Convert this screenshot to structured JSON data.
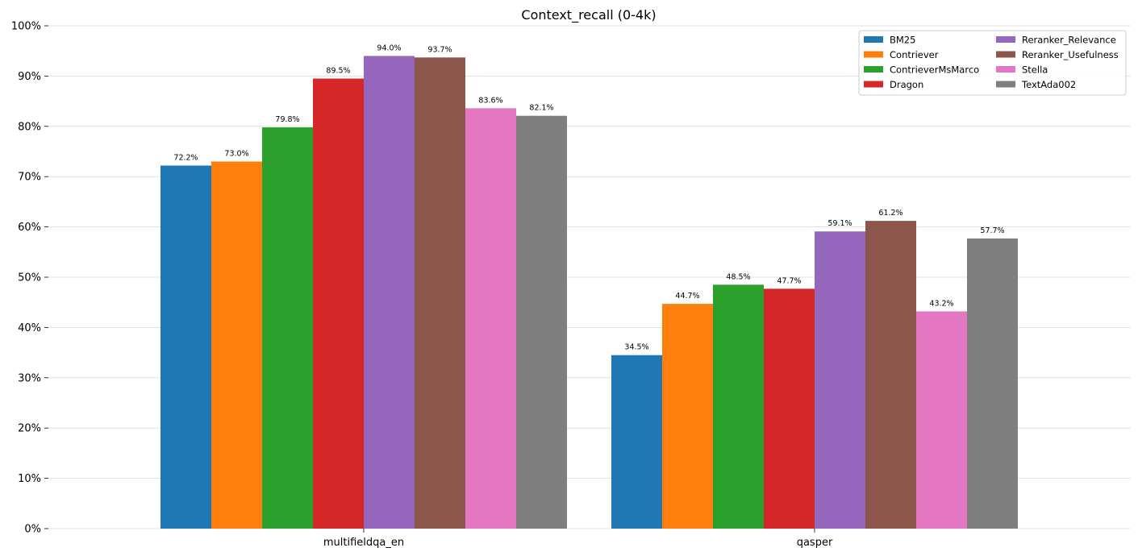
{
  "chart_data": {
    "type": "bar",
    "title": "Context_recall (0-4k)",
    "xlabel": "",
    "ylabel": "",
    "ylim": [
      0,
      100
    ],
    "ytick_labels": [
      "0%",
      "10%",
      "20%",
      "30%",
      "40%",
      "50%",
      "60%",
      "70%",
      "80%",
      "90%",
      "100%"
    ],
    "categories": [
      "multifieldqa_en",
      "qasper"
    ],
    "grid": "horizontal",
    "legend_position": "top-right",
    "series": [
      {
        "name": "BM25",
        "color": "#1f77b4",
        "values": [
          72.2,
          34.5
        ],
        "labels": [
          "72.2%",
          "34.5%"
        ]
      },
      {
        "name": "Contriever",
        "color": "#ff7f0e",
        "values": [
          73.0,
          44.7
        ],
        "labels": [
          "73.0%",
          "44.7%"
        ]
      },
      {
        "name": "ContrieverMsMarco",
        "color": "#2ca02c",
        "values": [
          79.8,
          48.5
        ],
        "labels": [
          "79.8%",
          "48.5%"
        ]
      },
      {
        "name": "Dragon",
        "color": "#d62728",
        "values": [
          89.5,
          47.7
        ],
        "labels": [
          "89.5%",
          "47.7%"
        ]
      },
      {
        "name": "Reranker_Relevance",
        "color": "#9467bd",
        "values": [
          94.0,
          59.1
        ],
        "labels": [
          "94.0%",
          "59.1%"
        ]
      },
      {
        "name": "Reranker_Usefulness",
        "color": "#8c564b",
        "values": [
          93.7,
          61.2
        ],
        "labels": [
          "93.7%",
          "61.2%"
        ]
      },
      {
        "name": "Stella",
        "color": "#e377c2",
        "values": [
          83.6,
          43.2
        ],
        "labels": [
          "83.6%",
          "43.2%"
        ]
      },
      {
        "name": "TextAda002",
        "color": "#7f7f7f",
        "values": [
          82.1,
          57.7
        ],
        "labels": [
          "82.1%",
          "57.7%"
        ]
      }
    ]
  }
}
